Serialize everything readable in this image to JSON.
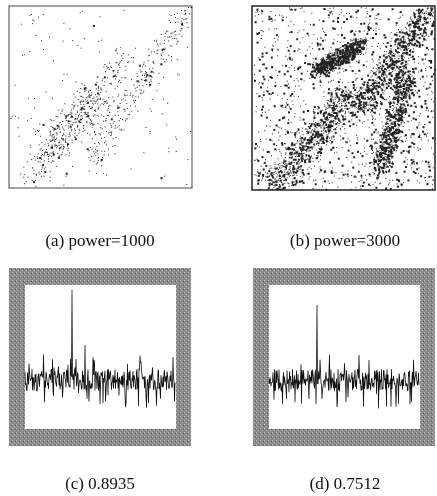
{
  "panels": [
    {
      "caption": "(a) power=1000"
    },
    {
      "caption": "(b) power=3000"
    },
    {
      "caption": "(c) 0.8935"
    },
    {
      "caption": "(d) 0.7512"
    }
  ]
}
